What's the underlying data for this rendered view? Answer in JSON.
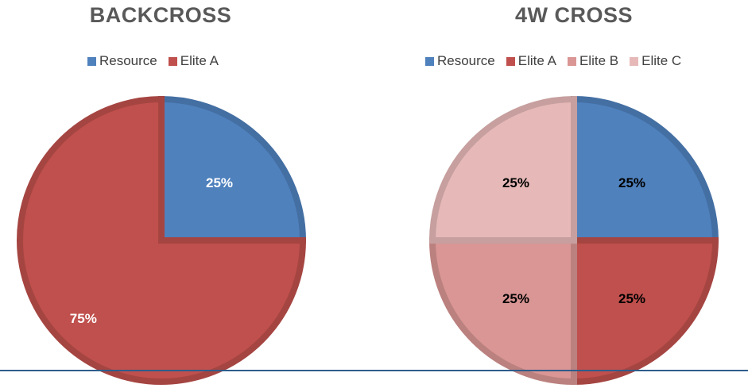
{
  "chart_data": [
    {
      "type": "pie",
      "title": "BACKCROSS",
      "legend_position": "top",
      "series": [
        {
          "name": "Resource",
          "value": 25,
          "label": "25%",
          "color": "#4f81bd",
          "label_color": "#ffffff"
        },
        {
          "name": "Elite A",
          "value": 75,
          "label": "75%",
          "color": "#c0504d",
          "label_color": "#ffffff"
        }
      ]
    },
    {
      "type": "pie",
      "title": "4W CROSS",
      "legend_position": "top",
      "series": [
        {
          "name": "Resource",
          "value": 25,
          "label": "25%",
          "color": "#4f81bd",
          "label_color": "#000000"
        },
        {
          "name": "Elite A",
          "value": 25,
          "label": "25%",
          "color": "#c0504d",
          "label_color": "#000000"
        },
        {
          "name": "Elite B",
          "value": 25,
          "label": "25%",
          "color": "#d99694",
          "label_color": "#000000"
        },
        {
          "name": "Elite C",
          "value": 25,
          "label": "25%",
          "color": "#e6b9b8",
          "label_color": "#000000"
        }
      ]
    }
  ]
}
